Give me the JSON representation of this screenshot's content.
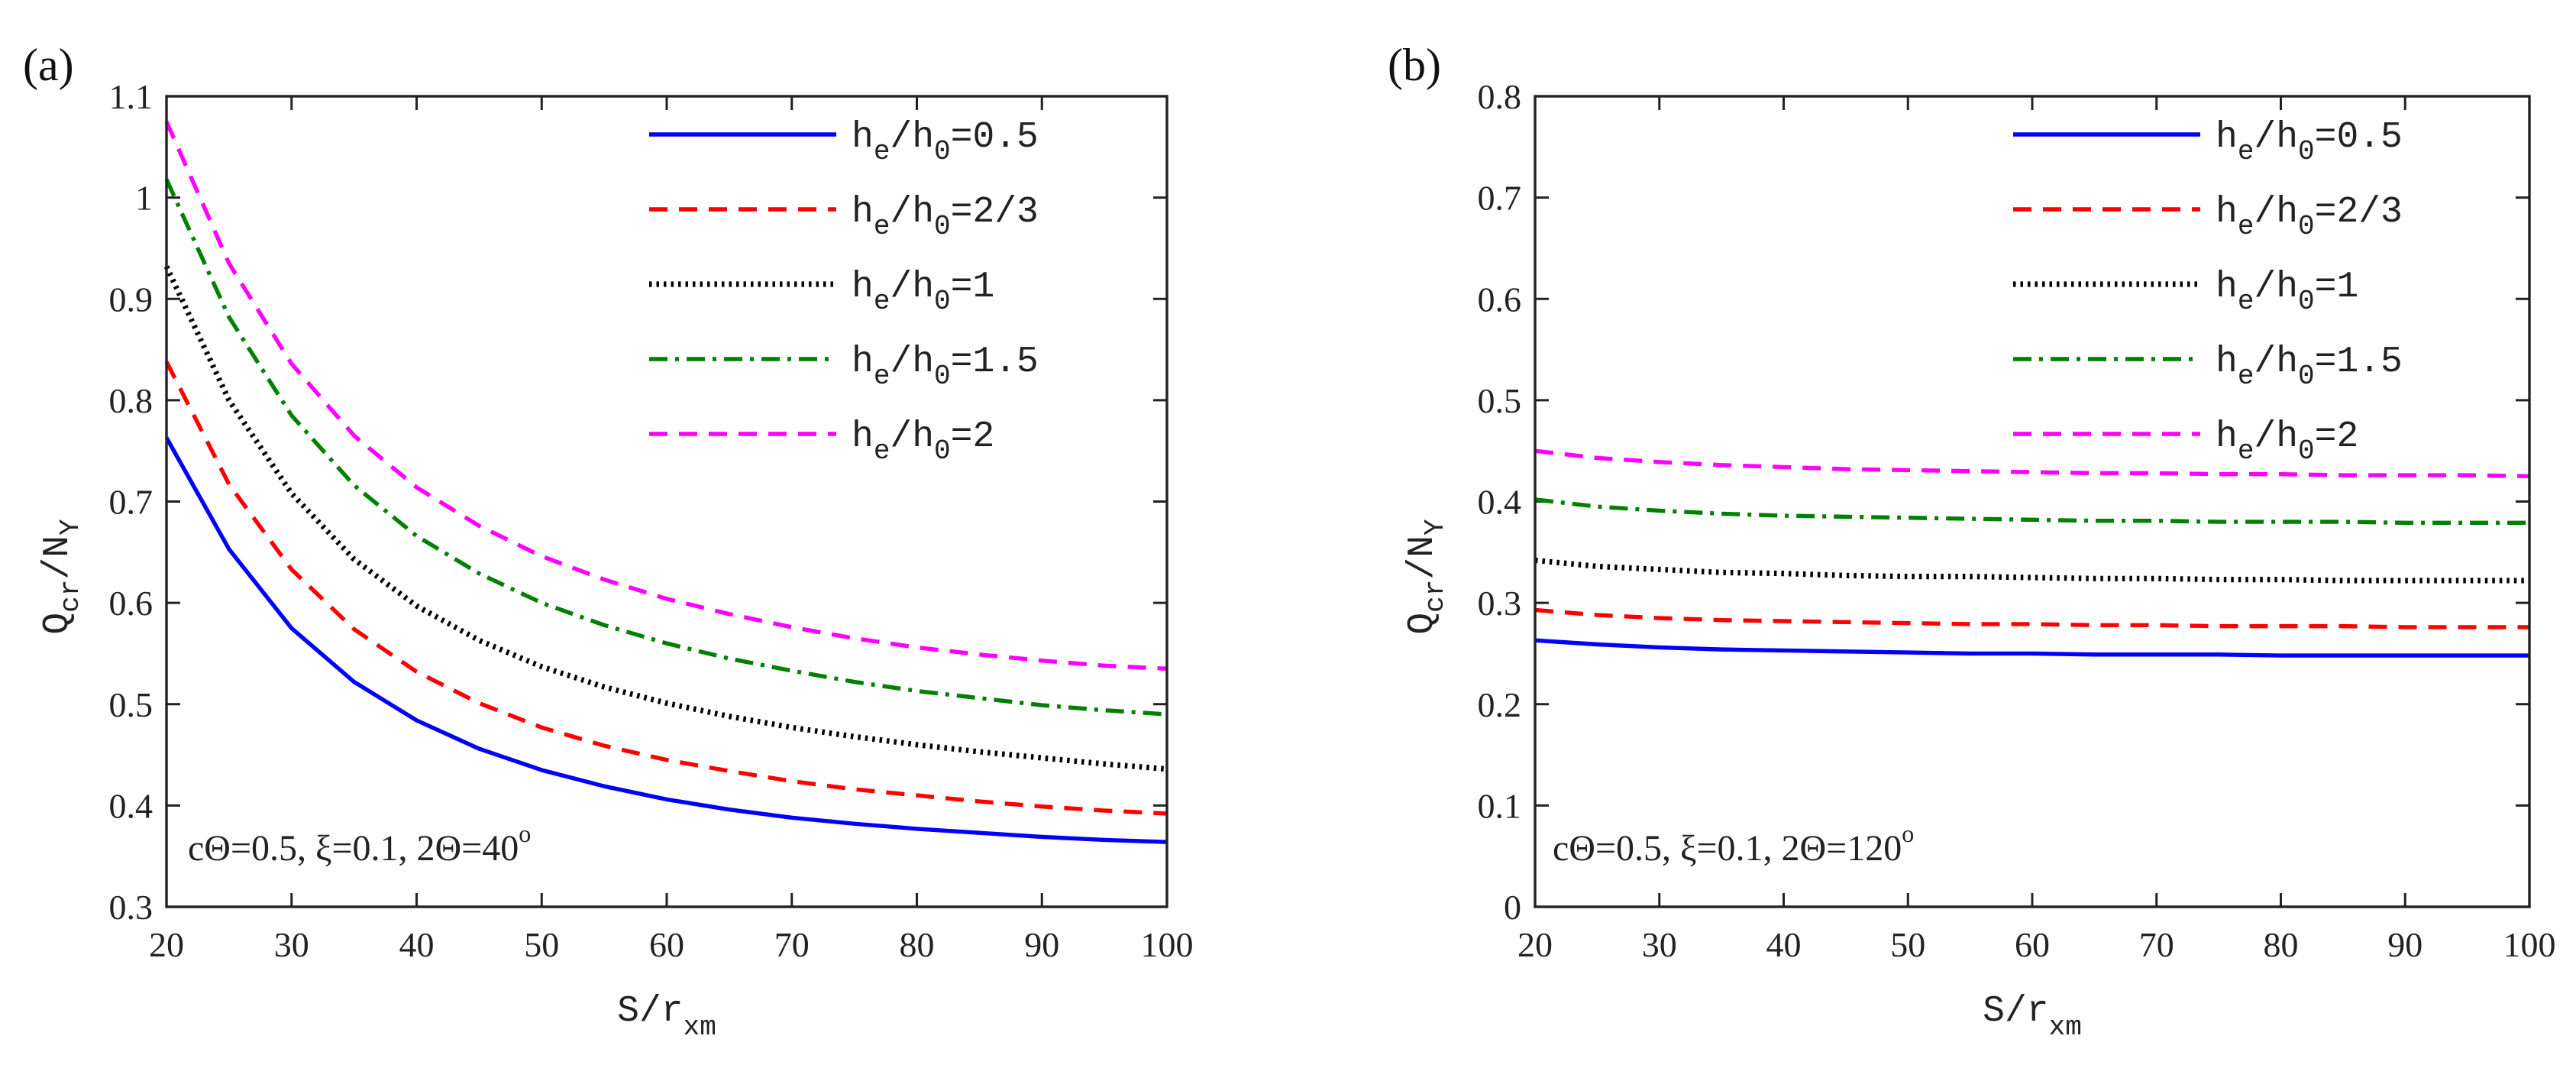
{
  "chart_data": [
    {
      "id": "a",
      "type": "line",
      "panel_label": "(a)",
      "x": [
        20,
        25,
        30,
        35,
        40,
        45,
        50,
        55,
        60,
        65,
        70,
        75,
        80,
        85,
        90,
        95,
        100
      ],
      "xlim": [
        20,
        100
      ],
      "ylim": [
        0.3,
        1.1
      ],
      "x_ticks": [
        "20",
        "30",
        "40",
        "50",
        "60",
        "70",
        "80",
        "90",
        "100"
      ],
      "y_ticks": [
        "0.3",
        "0.4",
        "0.5",
        "0.6",
        "0.7",
        "0.8",
        "0.9",
        "1",
        "1.1"
      ],
      "xlabel": {
        "main": "S/r",
        "sub": "xm"
      },
      "ylabel": {
        "main": "Q",
        "sub1": "cr",
        "mid": "/N",
        "sub2": "Y"
      },
      "grid": false,
      "legend_position": "top-right",
      "annotation": {
        "text": "cΘ=0.5, ξ=0.1, 2Θ=40",
        "sup": "o"
      },
      "series": [
        {
          "legend": {
            "a": "h",
            "b": "e",
            "c": "/h",
            "d": "0",
            "e": "=0.5"
          },
          "color": "#0000ff",
          "dash": "solid",
          "values": [
            0.763,
            0.653,
            0.575,
            0.522,
            0.484,
            0.456,
            0.435,
            0.419,
            0.406,
            0.396,
            0.388,
            0.382,
            0.377,
            0.373,
            0.369,
            0.366,
            0.364
          ]
        },
        {
          "legend": {
            "a": "h",
            "b": "e",
            "c": "/h",
            "d": "0",
            "e": "=2/3"
          },
          "color": "#ff0000",
          "dash": "dashed",
          "values": [
            0.838,
            0.717,
            0.633,
            0.574,
            0.532,
            0.501,
            0.477,
            0.459,
            0.445,
            0.434,
            0.424,
            0.416,
            0.41,
            0.404,
            0.399,
            0.395,
            0.392
          ]
        },
        {
          "legend": {
            "a": "h",
            "b": "e",
            "c": "/h",
            "d": "0",
            "e": "=1"
          },
          "color": "#000000",
          "dash": "dotted",
          "values": [
            0.932,
            0.8,
            0.708,
            0.643,
            0.597,
            0.563,
            0.537,
            0.517,
            0.501,
            0.488,
            0.477,
            0.468,
            0.46,
            0.453,
            0.447,
            0.441,
            0.436
          ]
        },
        {
          "legend": {
            "a": "h",
            "b": "e",
            "c": "/h",
            "d": "0",
            "e": "=1.5"
          },
          "color": "#008000",
          "dash": "dashdot",
          "values": [
            1.018,
            0.882,
            0.785,
            0.716,
            0.666,
            0.629,
            0.6,
            0.578,
            0.56,
            0.545,
            0.533,
            0.522,
            0.513,
            0.506,
            0.499,
            0.494,
            0.49
          ]
        },
        {
          "legend": {
            "a": "h",
            "b": "e",
            "c": "/h",
            "d": "0",
            "e": "=2"
          },
          "color": "#ff00ff",
          "dash": "dashed",
          "values": [
            1.075,
            0.935,
            0.836,
            0.765,
            0.714,
            0.676,
            0.646,
            0.623,
            0.604,
            0.589,
            0.576,
            0.565,
            0.556,
            0.549,
            0.543,
            0.538,
            0.535
          ]
        }
      ]
    },
    {
      "id": "b",
      "type": "line",
      "panel_label": "(b)",
      "x": [
        20,
        25,
        30,
        35,
        40,
        45,
        50,
        55,
        60,
        65,
        70,
        75,
        80,
        85,
        90,
        95,
        100
      ],
      "xlim": [
        20,
        100
      ],
      "ylim": [
        0,
        0.8
      ],
      "x_ticks": [
        "20",
        "30",
        "40",
        "50",
        "60",
        "70",
        "80",
        "90",
        "100"
      ],
      "y_ticks": [
        "0",
        "0.1",
        "0.2",
        "0.3",
        "0.4",
        "0.5",
        "0.6",
        "0.7",
        "0.8"
      ],
      "xlabel": {
        "main": "S/r",
        "sub": "xm"
      },
      "ylabel": {
        "main": "Q",
        "sub1": "cr",
        "mid": "/N",
        "sub2": "Y"
      },
      "grid": false,
      "legend_position": "top-right",
      "annotation": {
        "text": "cΘ=0.5, ξ=0.1, 2Θ=120",
        "sup": "o"
      },
      "series": [
        {
          "legend": {
            "a": "h",
            "b": "e",
            "c": "/h",
            "d": "0",
            "e": "=0.5"
          },
          "color": "#0000ff",
          "dash": "solid",
          "values": [
            0.263,
            0.259,
            0.256,
            0.254,
            0.253,
            0.252,
            0.251,
            0.25,
            0.25,
            0.249,
            0.249,
            0.249,
            0.248,
            0.248,
            0.248,
            0.248,
            0.248
          ]
        },
        {
          "legend": {
            "a": "h",
            "b": "e",
            "c": "/h",
            "d": "0",
            "e": "=2/3"
          },
          "color": "#ff0000",
          "dash": "dashed",
          "values": [
            0.293,
            0.288,
            0.285,
            0.283,
            0.282,
            0.281,
            0.28,
            0.279,
            0.279,
            0.278,
            0.278,
            0.277,
            0.277,
            0.277,
            0.276,
            0.276,
            0.276
          ]
        },
        {
          "legend": {
            "a": "h",
            "b": "e",
            "c": "/h",
            "d": "0",
            "e": "=1"
          },
          "color": "#000000",
          "dash": "dotted",
          "values": [
            0.342,
            0.336,
            0.333,
            0.33,
            0.329,
            0.327,
            0.326,
            0.326,
            0.325,
            0.324,
            0.324,
            0.323,
            0.323,
            0.322,
            0.322,
            0.322,
            0.322
          ]
        },
        {
          "legend": {
            "a": "h",
            "b": "e",
            "c": "/h",
            "d": "0",
            "e": "=1.5"
          },
          "color": "#008000",
          "dash": "dashdot",
          "values": [
            0.402,
            0.395,
            0.391,
            0.388,
            0.386,
            0.385,
            0.384,
            0.383,
            0.382,
            0.381,
            0.381,
            0.38,
            0.38,
            0.38,
            0.379,
            0.379,
            0.379
          ]
        },
        {
          "legend": {
            "a": "h",
            "b": "e",
            "c": "/h",
            "d": "0",
            "e": "=2"
          },
          "color": "#ff00ff",
          "dash": "dashed",
          "values": [
            0.45,
            0.443,
            0.439,
            0.436,
            0.434,
            0.432,
            0.431,
            0.43,
            0.429,
            0.428,
            0.428,
            0.427,
            0.427,
            0.426,
            0.426,
            0.426,
            0.425
          ]
        }
      ]
    }
  ]
}
